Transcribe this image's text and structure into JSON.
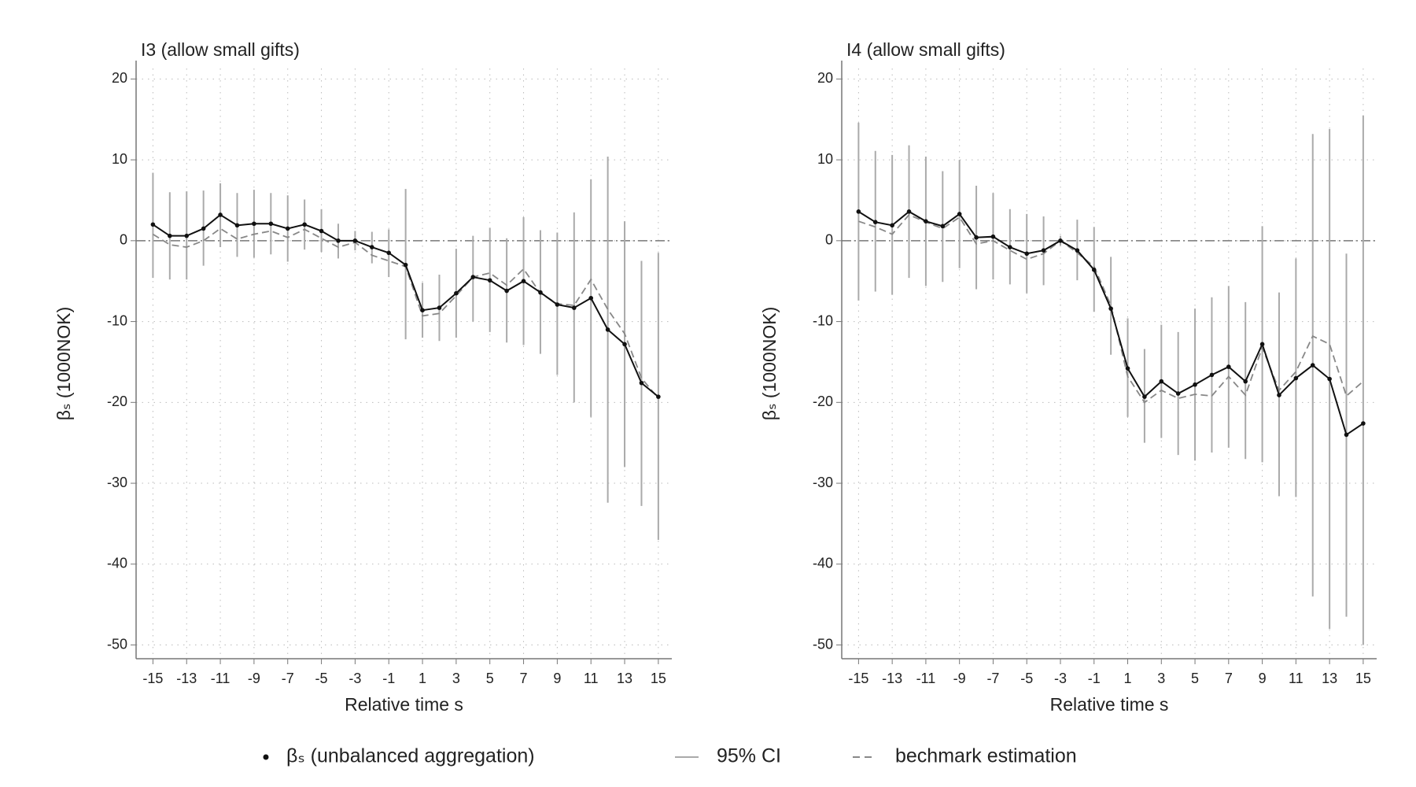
{
  "chart_data": [
    {
      "type": "event-study",
      "title": "I3 (allow small gifts)",
      "xlabel": "Relative time s",
      "ylabel": "βₛ (1000NOK)",
      "x": [
        -15,
        -14,
        -13,
        -12,
        -11,
        -10,
        -9,
        -8,
        -7,
        -6,
        -5,
        -4,
        -3,
        -2,
        -1,
        0,
        1,
        2,
        3,
        4,
        5,
        6,
        7,
        8,
        9,
        10,
        11,
        12,
        13,
        14,
        15
      ],
      "xlim": [
        -16,
        15.8
      ],
      "ylim": [
        -51.7,
        21.3
      ],
      "xticks": [
        -15,
        -13,
        -11,
        -9,
        -7,
        -5,
        -3,
        -1,
        1,
        3,
        5,
        7,
        9,
        11,
        13,
        15
      ],
      "yticks": [
        -50,
        -40,
        -30,
        -20,
        -10,
        0,
        10,
        20
      ],
      "grid": true,
      "hline": 0,
      "series": [
        {
          "name": "βₛ (unbalanced aggregation)",
          "color": "#111111",
          "values": [
            2.0,
            0.6,
            0.6,
            1.5,
            3.2,
            1.9,
            2.1,
            2.1,
            1.5,
            2.0,
            1.2,
            0,
            0,
            -0.8,
            -1.5,
            -3.0,
            -8.6,
            -8.3,
            -6.5,
            -4.5,
            -4.9,
            -6.2,
            -5.0,
            -6.4,
            -7.9,
            -8.3,
            -7.1,
            -11.0,
            -12.8,
            -17.6,
            -19.3
          ]
        },
        {
          "name": "95% CI",
          "color": "#aaaaaa",
          "lower": [
            -4.6,
            -4.8,
            -4.8,
            -3.1,
            -0.8,
            -2.0,
            -2.1,
            -1.7,
            -2.6,
            -1.1,
            -1.4,
            -2.2,
            -1.2,
            -2.8,
            -4.5,
            -12.2,
            -12.0,
            -12.4,
            -12.0,
            -10.0,
            -11.3,
            -12.6,
            -12.9,
            -14.0,
            -16.6,
            -20.0,
            -21.8,
            -32.4,
            -28.0,
            -32.8,
            -37.0
          ],
          "upper": [
            8.4,
            6.0,
            6.1,
            6.2,
            7.1,
            5.9,
            6.3,
            5.9,
            5.6,
            5.1,
            3.9,
            2.1,
            1.2,
            1.1,
            1.4,
            6.4,
            -5.2,
            -4.2,
            -1.0,
            0.6,
            1.6,
            0.3,
            2.9,
            1.3,
            1.0,
            3.5,
            7.6,
            10.4,
            2.4,
            -2.5,
            -1.5
          ]
        },
        {
          "name": "bechmark estimation",
          "color": "#888888",
          "values": [
            0.8,
            -0.5,
            -0.8,
            0.0,
            1.5,
            0.2,
            0.8,
            1.2,
            0.4,
            1.4,
            0.3,
            -0.8,
            -0.2,
            -1.8,
            -2.5,
            -3.2,
            -9.3,
            -9.0,
            -6.8,
            -4.5,
            -4.0,
            -5.5,
            -3.5,
            -6.5,
            -7.8,
            -8.0,
            -4.8,
            -8.5,
            -11.5,
            -17.0,
            -19.5
          ]
        }
      ]
    },
    {
      "type": "event-study",
      "title": "I4 (allow small gifts)",
      "xlabel": "Relative time s",
      "ylabel": "βₛ (1000NOK)",
      "x": [
        -15,
        -14,
        -13,
        -12,
        -11,
        -10,
        -9,
        -8,
        -7,
        -6,
        -5,
        -4,
        -3,
        -2,
        -1,
        0,
        1,
        2,
        3,
        4,
        5,
        6,
        7,
        8,
        9,
        10,
        11,
        12,
        13,
        14,
        15
      ],
      "xlim": [
        -16,
        15.8
      ],
      "ylim": [
        -51.7,
        21.3
      ],
      "xticks": [
        -15,
        -13,
        -11,
        -9,
        -7,
        -5,
        -3,
        -1,
        1,
        3,
        5,
        7,
        9,
        11,
        13,
        15
      ],
      "yticks": [
        -50,
        -40,
        -30,
        -20,
        -10,
        0,
        10,
        20
      ],
      "grid": true,
      "hline": 0,
      "series": [
        {
          "color": "#111111",
          "values": [
            3.6,
            2.3,
            1.9,
            3.6,
            2.4,
            1.8,
            3.3,
            0.4,
            0.5,
            -0.8,
            -1.6,
            -1.2,
            0.0,
            -1.2,
            -3.6,
            -8.4,
            -15.8,
            -19.3,
            -17.4,
            -18.9,
            -17.8,
            -16.6,
            -15.6,
            -17.4,
            -12.8,
            -19.1,
            -17.0,
            -15.4,
            -17.1,
            -24.0,
            -22.6
          ]
        },
        {
          "color": "#aaaaaa",
          "lower": [
            -7.4,
            -6.3,
            -6.7,
            -4.6,
            -5.6,
            -5.1,
            -3.4,
            -6.0,
            -4.8,
            -5.4,
            -6.5,
            -5.5,
            -0.6,
            -4.9,
            -8.8,
            -14.1,
            -21.8,
            -25.0,
            -24.4,
            -26.5,
            -27.2,
            -26.2,
            -25.6,
            -27.0,
            -27.4,
            -31.6,
            -31.7,
            -44.0,
            -48.0,
            -46.5,
            -50.0
          ],
          "upper": [
            14.6,
            11.1,
            10.6,
            11.8,
            10.4,
            8.6,
            10.0,
            6.8,
            5.9,
            3.9,
            3.3,
            3.0,
            0.6,
            2.6,
            1.7,
            -2.0,
            -9.6,
            -13.4,
            -10.4,
            -11.3,
            -8.4,
            -7.0,
            -5.6,
            -7.6,
            1.8,
            -6.4,
            -2.2,
            13.2,
            13.8,
            -1.6,
            15.5
          ]
        },
        {
          "color": "#888888",
          "values": [
            2.4,
            1.7,
            0.8,
            3.2,
            2.3,
            1.5,
            2.9,
            -0.4,
            0.0,
            -1.2,
            -2.3,
            -1.6,
            0.0,
            -1.5,
            -3.2,
            -8.0,
            -16.8,
            -20.0,
            -18.5,
            -19.5,
            -19.0,
            -19.2,
            -16.8,
            -19.1,
            -13.2,
            -18.5,
            -16.2,
            -11.8,
            -12.8,
            -19.2,
            -17.4
          ]
        }
      ]
    }
  ]
}
